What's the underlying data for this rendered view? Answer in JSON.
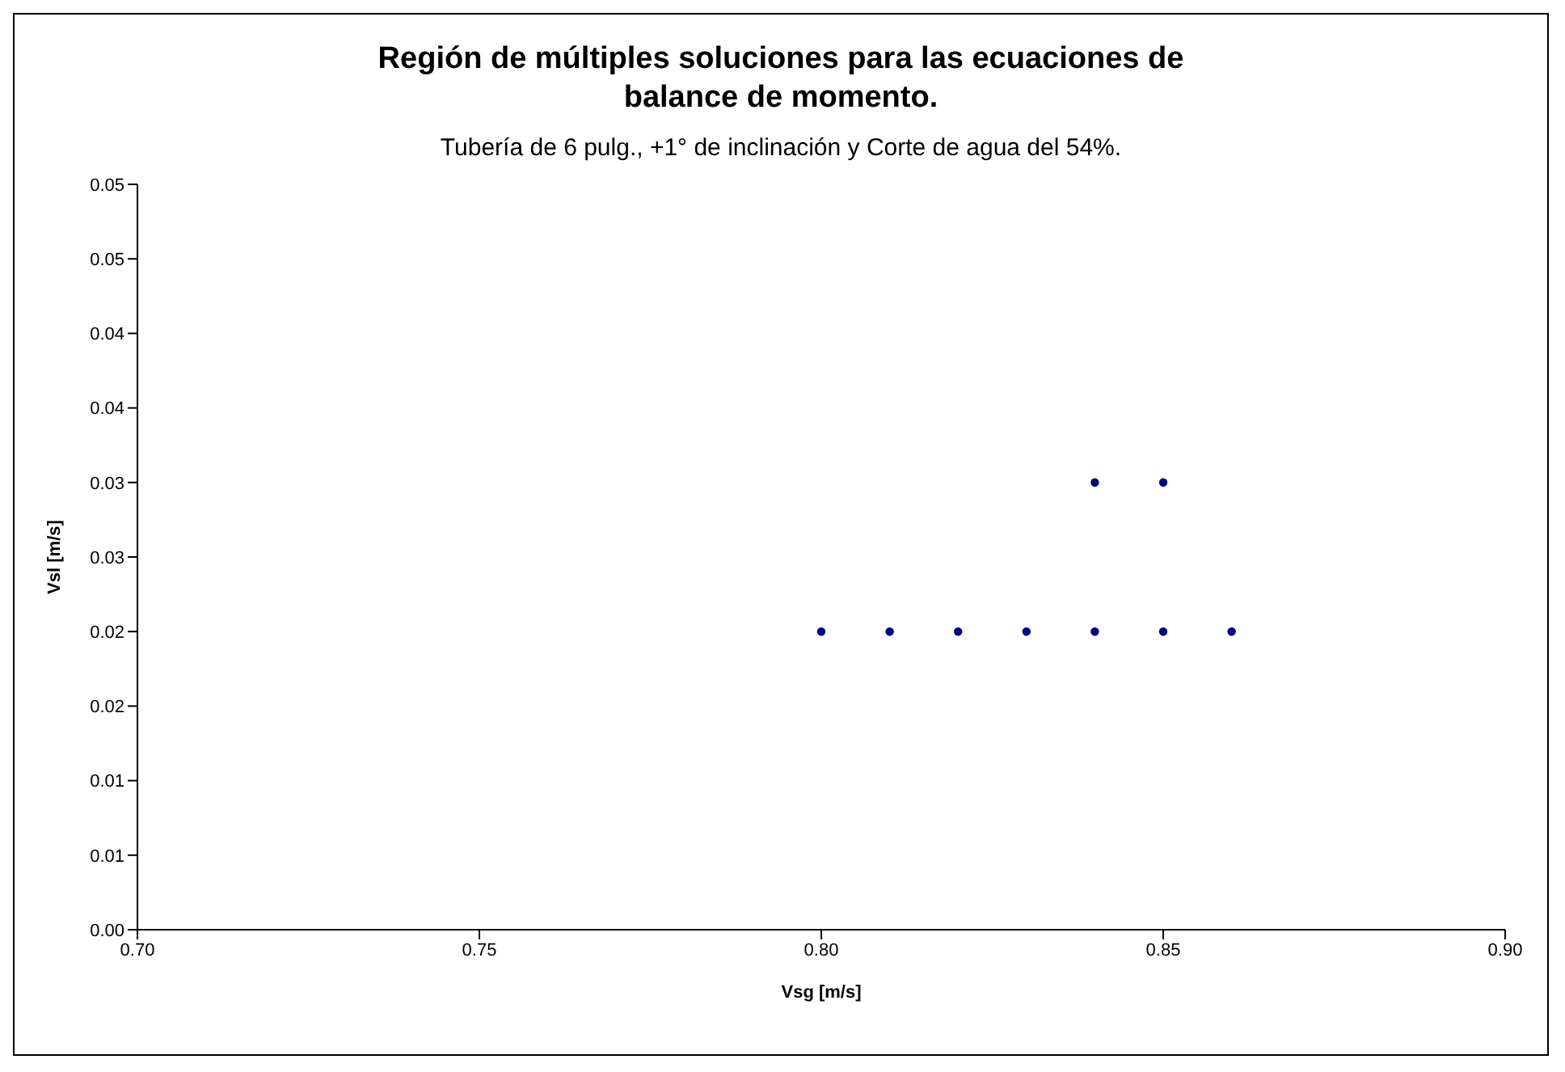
{
  "chart_data": {
    "type": "scatter",
    "title": "Región de múltiples soluciones para las ecuaciones de balance de momento.",
    "subtitle": "Tubería de 6 pulg., +1° de inclinación y Corte de agua del 54%.",
    "xlabel": "Vsg [m/s]",
    "ylabel": "Vsl [m/s]",
    "x": [
      0.8,
      0.81,
      0.82,
      0.83,
      0.84,
      0.85,
      0.86,
      0.84,
      0.85
    ],
    "series": [
      {
        "color": "#000080",
        "values": [
          0.02,
          0.02,
          0.02,
          0.02,
          0.02,
          0.02,
          0.02,
          0.03,
          0.03
        ]
      }
    ],
    "xlim": [
      0.7,
      0.9
    ],
    "xticks": [
      {
        "value": 0.7,
        "label": "0.70"
      },
      {
        "value": 0.75,
        "label": "0.75"
      },
      {
        "value": 0.8,
        "label": "0.80"
      },
      {
        "value": 0.85,
        "label": "0.85"
      },
      {
        "value": 0.9,
        "label": "0.90"
      }
    ],
    "ylim": [
      0,
      0.05
    ],
    "yticks": [
      {
        "value": 0,
        "label": "0.00"
      },
      {
        "value": 0.005,
        "label": "0.01"
      },
      {
        "value": 0.01,
        "label": "0.01"
      },
      {
        "value": 0.015,
        "label": "0.02"
      },
      {
        "value": 0.02,
        "label": "0.02"
      },
      {
        "value": 0.025,
        "label": "0.03"
      },
      {
        "value": 0.03,
        "label": "0.03"
      },
      {
        "value": 0.035,
        "label": "0.04"
      },
      {
        "value": 0.04,
        "label": "0.04"
      },
      {
        "value": 0.045,
        "label": "0.05"
      },
      {
        "value": 0.05,
        "label": "0.05"
      }
    ],
    "grid": false,
    "legend": false,
    "marker": "circle"
  }
}
